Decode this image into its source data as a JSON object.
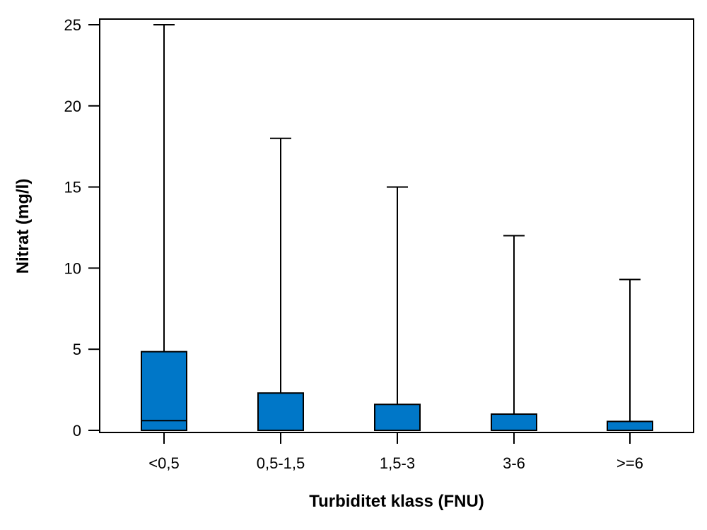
{
  "chart_data": {
    "type": "box",
    "xlabel": "Turbiditet klass (FNU)",
    "ylabel": "Nitrat (mg/l)",
    "ylim": [
      0,
      25
    ],
    "yticks": [
      0,
      5,
      10,
      15,
      20,
      25
    ],
    "grid": false,
    "categories": [
      "<0,5",
      "0,5-1,5",
      "1,5-3",
      "3-6",
      ">=6"
    ],
    "boxes": [
      {
        "category": "<0,5",
        "whisker_low": 0,
        "q1": 0,
        "median": 0.6,
        "q3": 4.85,
        "whisker_high": 25
      },
      {
        "category": "0,5-1,5",
        "whisker_low": 0,
        "q1": 0,
        "median": 0,
        "q3": 2.3,
        "whisker_high": 18
      },
      {
        "category": "1,5-3",
        "whisker_low": 0,
        "q1": 0,
        "median": 0,
        "q3": 1.6,
        "whisker_high": 15
      },
      {
        "category": "3-6",
        "whisker_low": 0,
        "q1": 0,
        "median": 0,
        "q3": 1.0,
        "whisker_high": 12
      },
      {
        "category": ">=6",
        "whisker_low": 0,
        "q1": 0,
        "median": 0,
        "q3": 0.55,
        "whisker_high": 9.3
      }
    ],
    "colors": {
      "box_fill": "#0077c8",
      "line": "#000000"
    }
  }
}
